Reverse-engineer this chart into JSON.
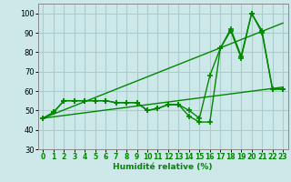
{
  "title": "",
  "xlabel": "Humidité relative (%)",
  "ylabel": "",
  "background_color": "#cce8e8",
  "grid_color": "#aacccc",
  "line_color": "#008800",
  "xlim": [
    -0.5,
    23.5
  ],
  "ylim": [
    30,
    105
  ],
  "yticks": [
    30,
    40,
    50,
    60,
    70,
    80,
    90,
    100
  ],
  "xticks": [
    0,
    1,
    2,
    3,
    4,
    5,
    6,
    7,
    8,
    9,
    10,
    11,
    12,
    13,
    14,
    15,
    16,
    17,
    18,
    19,
    20,
    21,
    22,
    23
  ],
  "series": [
    {
      "x": [
        0,
        1,
        2,
        3,
        4,
        5,
        6,
        7,
        8,
        9,
        10,
        11,
        12,
        13,
        14,
        15,
        16,
        17,
        18,
        19,
        20,
        21,
        22,
        23
      ],
      "y": [
        46,
        49,
        55,
        55,
        55,
        55,
        55,
        54,
        54,
        54,
        50,
        51,
        53,
        53,
        47,
        44,
        44,
        82,
        92,
        78,
        100,
        91,
        61,
        61
      ],
      "marker": "+",
      "markersize": 4,
      "linewidth": 1.0
    },
    {
      "x": [
        0,
        1,
        2,
        3,
        4,
        5,
        6,
        7,
        8,
        9,
        10,
        11,
        12,
        13,
        14,
        15,
        16,
        17,
        18,
        19,
        20,
        21,
        22,
        23
      ],
      "y": [
        46,
        49,
        55,
        55,
        55,
        55,
        55,
        54,
        54,
        54,
        50,
        51,
        53,
        53,
        50,
        46,
        68,
        82,
        91,
        77,
        100,
        90,
        61,
        61
      ],
      "marker": "+",
      "markersize": 4,
      "linewidth": 1.0
    },
    {
      "x": [
        0,
        23
      ],
      "y": [
        46,
        95
      ],
      "marker": null,
      "markersize": 0,
      "linewidth": 1.0
    },
    {
      "x": [
        0,
        23
      ],
      "y": [
        46,
        62
      ],
      "marker": null,
      "markersize": 0,
      "linewidth": 1.0
    }
  ]
}
